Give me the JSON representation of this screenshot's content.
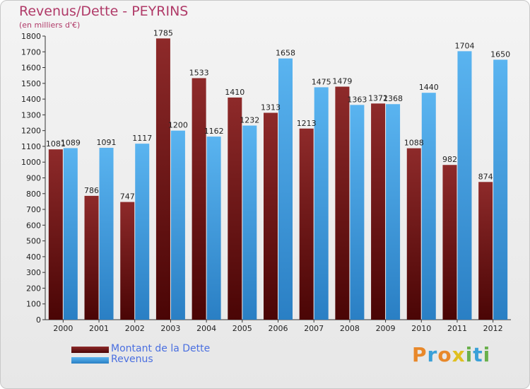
{
  "title": "Revenus/Dette - PEYRINS",
  "subtitle": "(en milliers d'€)",
  "legend": {
    "debt": "Montant de la Dette",
    "revenue": "Revenus"
  },
  "brand": "Proxiti",
  "colors": {
    "debt": "#7a1a1a",
    "revenue": "#3a9ee6",
    "title": "#b03a68",
    "legend_text": "#4a6fe0"
  },
  "chart_data": {
    "type": "bar",
    "categories": [
      "2000",
      "2001",
      "2002",
      "2003",
      "2004",
      "2005",
      "2006",
      "2007",
      "2008",
      "2009",
      "2010",
      "2011",
      "2012"
    ],
    "series": [
      {
        "name": "Montant de la Dette",
        "values": [
          1081,
          786,
          747,
          1785,
          1533,
          1410,
          1313,
          1213,
          1479,
          1372,
          1088,
          982,
          874
        ]
      },
      {
        "name": "Revenus",
        "values": [
          1089,
          1091,
          1117,
          1200,
          1162,
          1232,
          1658,
          1475,
          1363,
          1368,
          1440,
          1704,
          1650
        ]
      }
    ],
    "ylim": [
      0,
      1800
    ],
    "yticks": [
      0,
      100,
      200,
      300,
      400,
      500,
      600,
      700,
      800,
      900,
      1000,
      1100,
      1200,
      1300,
      1400,
      1500,
      1600,
      1700,
      1800
    ],
    "grid": false,
    "legend_position": "bottom-left"
  }
}
